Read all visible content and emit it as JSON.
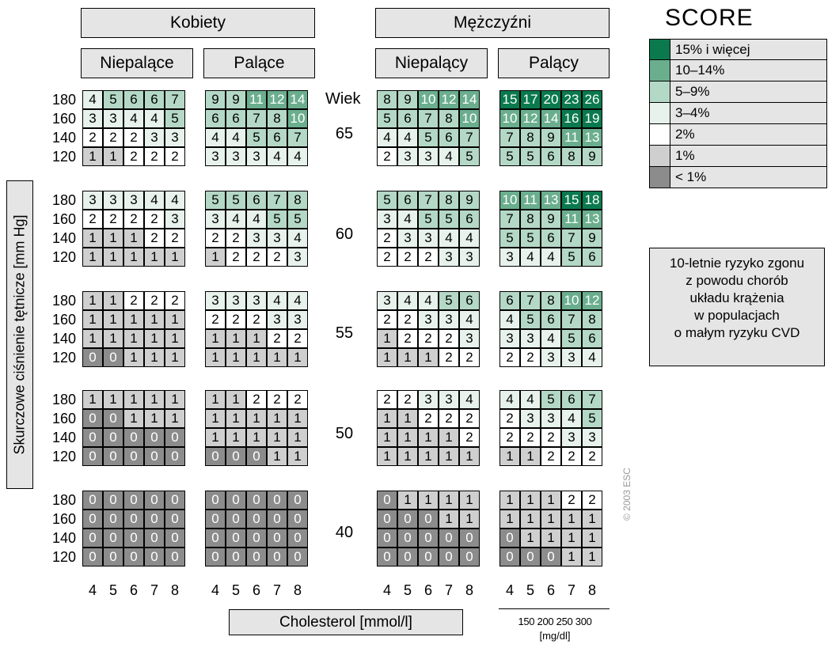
{
  "chart_data": {
    "type": "heatmap",
    "title": "SCORE",
    "ylabel": "Skurczowe ciśnienie tętnicze [mm Hg]",
    "xlabel": "Cholesterol [mmol/l]",
    "x_secondary_label": "[mg/dl]",
    "x_secondary_ticks": [
      "150",
      "200",
      "250",
      "300"
    ],
    "sex_labels": [
      "Kobiety",
      "Mężczyźni"
    ],
    "smoking_labels": {
      "women": [
        "Niepalące",
        "Palące"
      ],
      "men": [
        "Niepalący",
        "Palący"
      ]
    },
    "age_header": "Wiek",
    "ages": [
      "65",
      "60",
      "55",
      "50",
      "40"
    ],
    "sbp": [
      "180",
      "160",
      "140",
      "120"
    ],
    "cholesterol": [
      "4",
      "5",
      "6",
      "7",
      "8"
    ],
    "blocks": {
      "women_nonsmoking": [
        [
          [
            4,
            5,
            6,
            6,
            7
          ],
          [
            3,
            3,
            4,
            4,
            5
          ],
          [
            2,
            2,
            2,
            3,
            3
          ],
          [
            1,
            1,
            2,
            2,
            2
          ]
        ],
        [
          [
            3,
            3,
            3,
            4,
            4
          ],
          [
            2,
            2,
            2,
            2,
            3
          ],
          [
            1,
            1,
            1,
            2,
            2
          ],
          [
            1,
            1,
            1,
            1,
            1
          ]
        ],
        [
          [
            1,
            1,
            2,
            2,
            2
          ],
          [
            1,
            1,
            1,
            1,
            1
          ],
          [
            1,
            1,
            1,
            1,
            1
          ],
          [
            0,
            0,
            1,
            1,
            1
          ]
        ],
        [
          [
            1,
            1,
            1,
            1,
            1
          ],
          [
            0,
            0,
            1,
            1,
            1
          ],
          [
            0,
            0,
            0,
            0,
            0
          ],
          [
            0,
            0,
            0,
            0,
            0
          ]
        ],
        [
          [
            0,
            0,
            0,
            0,
            0
          ],
          [
            0,
            0,
            0,
            0,
            0
          ],
          [
            0,
            0,
            0,
            0,
            0
          ],
          [
            0,
            0,
            0,
            0,
            0
          ]
        ]
      ],
      "women_smoking": [
        [
          [
            9,
            9,
            11,
            12,
            14
          ],
          [
            6,
            6,
            7,
            8,
            10
          ],
          [
            4,
            4,
            5,
            6,
            7
          ],
          [
            3,
            3,
            3,
            4,
            4
          ]
        ],
        [
          [
            5,
            5,
            6,
            7,
            8
          ],
          [
            3,
            4,
            4,
            5,
            5
          ],
          [
            2,
            2,
            3,
            3,
            4
          ],
          [
            1,
            2,
            2,
            2,
            3
          ]
        ],
        [
          [
            3,
            3,
            3,
            4,
            4
          ],
          [
            2,
            2,
            2,
            3,
            3
          ],
          [
            1,
            1,
            1,
            2,
            2
          ],
          [
            1,
            1,
            1,
            1,
            1
          ]
        ],
        [
          [
            1,
            1,
            2,
            2,
            2
          ],
          [
            1,
            1,
            1,
            1,
            1
          ],
          [
            1,
            1,
            1,
            1,
            1
          ],
          [
            0,
            0,
            0,
            1,
            1
          ]
        ],
        [
          [
            0,
            0,
            0,
            0,
            0
          ],
          [
            0,
            0,
            0,
            0,
            0
          ],
          [
            0,
            0,
            0,
            0,
            0
          ],
          [
            0,
            0,
            0,
            0,
            0
          ]
        ]
      ],
      "men_nonsmoking": [
        [
          [
            8,
            9,
            10,
            12,
            14
          ],
          [
            5,
            6,
            7,
            8,
            10
          ],
          [
            4,
            4,
            5,
            6,
            7
          ],
          [
            2,
            3,
            3,
            4,
            5
          ]
        ],
        [
          [
            5,
            6,
            7,
            8,
            9
          ],
          [
            3,
            4,
            5,
            5,
            6
          ],
          [
            2,
            3,
            3,
            4,
            4
          ],
          [
            2,
            2,
            2,
            3,
            3
          ]
        ],
        [
          [
            3,
            4,
            4,
            5,
            6
          ],
          [
            2,
            2,
            3,
            3,
            4
          ],
          [
            1,
            2,
            2,
            2,
            3
          ],
          [
            1,
            1,
            1,
            2,
            2
          ]
        ],
        [
          [
            2,
            2,
            3,
            3,
            4
          ],
          [
            1,
            1,
            2,
            2,
            2
          ],
          [
            1,
            1,
            1,
            1,
            2
          ],
          [
            1,
            1,
            1,
            1,
            1
          ]
        ],
        [
          [
            0,
            1,
            1,
            1,
            1
          ],
          [
            0,
            0,
            0,
            1,
            1
          ],
          [
            0,
            0,
            0,
            0,
            0
          ],
          [
            0,
            0,
            0,
            0,
            0
          ]
        ]
      ],
      "men_smoking": [
        [
          [
            15,
            17,
            20,
            23,
            26
          ],
          [
            10,
            12,
            14,
            16,
            19
          ],
          [
            7,
            8,
            9,
            11,
            13
          ],
          [
            5,
            5,
            6,
            8,
            9
          ]
        ],
        [
          [
            10,
            11,
            13,
            15,
            18
          ],
          [
            7,
            8,
            9,
            11,
            13
          ],
          [
            5,
            5,
            6,
            7,
            9
          ],
          [
            3,
            4,
            4,
            5,
            6
          ]
        ],
        [
          [
            6,
            7,
            8,
            10,
            12
          ],
          [
            4,
            5,
            6,
            7,
            8
          ],
          [
            3,
            3,
            4,
            5,
            6
          ],
          [
            2,
            2,
            3,
            3,
            4
          ]
        ],
        [
          [
            4,
            4,
            5,
            6,
            7
          ],
          [
            2,
            3,
            3,
            4,
            5
          ],
          [
            2,
            2,
            2,
            3,
            3
          ],
          [
            1,
            1,
            2,
            2,
            2
          ]
        ],
        [
          [
            1,
            1,
            1,
            2,
            2
          ],
          [
            1,
            1,
            1,
            1,
            1
          ],
          [
            0,
            1,
            1,
            1,
            1
          ],
          [
            0,
            0,
            0,
            1,
            1
          ]
        ]
      ]
    }
  },
  "legend": {
    "items": [
      {
        "label": "15% i więcej",
        "color": "#0a7a4e"
      },
      {
        "label": "10–14%",
        "color": "#6aae8e"
      },
      {
        "label": "5–9%",
        "color": "#b4d8c6"
      },
      {
        "label": "3–4%",
        "color": "#e6f2eb"
      },
      {
        "label": "2%",
        "color": "#ffffff"
      },
      {
        "label": "1%",
        "color": "#cfcfcf"
      },
      {
        "label": "< 1%",
        "color": "#8c8c8c"
      }
    ]
  },
  "info": {
    "lines": [
      "10-letnie ryzyko zgonu",
      "z powodu chorób",
      "układu krążenia",
      "w populacjach",
      "o małym ryzyku CVD"
    ]
  },
  "copyright": "© 2003 ESC"
}
